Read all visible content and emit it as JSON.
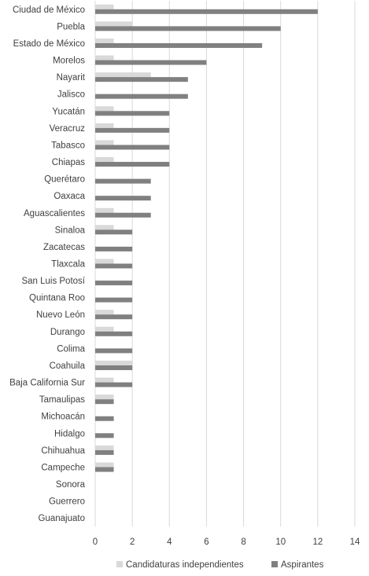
{
  "chart_data": {
    "type": "bar",
    "orientation": "horizontal",
    "categories": [
      "Ciudad de México",
      "Puebla",
      "Estado de México",
      "Morelos",
      "Nayarit",
      "Jalisco",
      "Yucatán",
      "Veracruz",
      "Tabasco",
      "Chiapas",
      "Querétaro",
      "Oaxaca",
      "Aguascalientes",
      "Sinaloa",
      "Zacatecas",
      "Tlaxcala",
      "San Luis Potosí",
      "Quintana Roo",
      "Nuevo León",
      "Durango",
      "Colima",
      "Coahuila",
      "Baja California Sur",
      "Tamaulipas",
      "Michoacán",
      "Hidalgo",
      "Chihuahua",
      "Campeche",
      "Sonora",
      "Guerrero",
      "Guanajuato"
    ],
    "series": [
      {
        "name": "Candidaturas independientes",
        "color": "#d9d9d9",
        "values": [
          1,
          2,
          1,
          1,
          3,
          0,
          1,
          1,
          1,
          1,
          0,
          0,
          1,
          1,
          0,
          1,
          0,
          0,
          1,
          1,
          0,
          2,
          1,
          1,
          0,
          0,
          1,
          1,
          0,
          0,
          0
        ]
      },
      {
        "name": "Aspirantes",
        "color": "#808080",
        "values": [
          12,
          10,
          9,
          6,
          5,
          5,
          4,
          4,
          4,
          4,
          3,
          3,
          3,
          2,
          2,
          2,
          2,
          2,
          2,
          2,
          2,
          2,
          2,
          1,
          1,
          1,
          1,
          1,
          0,
          0,
          0
        ]
      }
    ],
    "xlim": [
      0,
      14
    ],
    "xticks": [
      "0",
      "2",
      "4",
      "6",
      "8",
      "10",
      "12",
      "14"
    ],
    "grid": true,
    "legend_position": "bottom"
  }
}
